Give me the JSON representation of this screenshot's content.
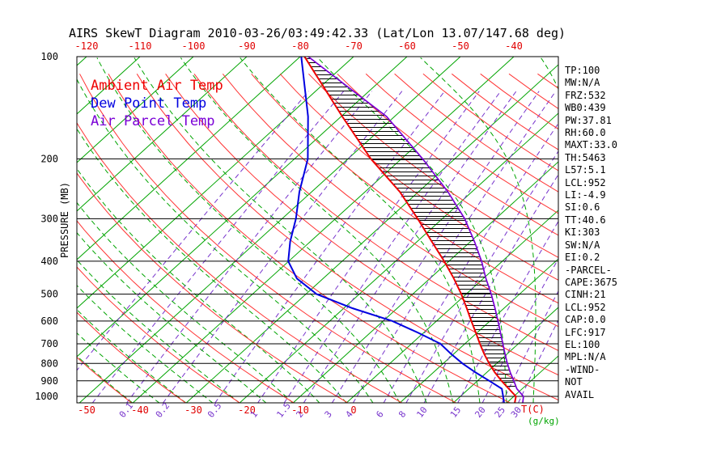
{
  "title": "AIRS SkewT Diagram 2010-03-26/03:49:42.33 (Lat/Lon 13.07/147.68 deg)",
  "legend": {
    "ambient": "Ambient Air Temp",
    "dew": "Dew Point Temp",
    "parcel": "Air Parcel Temp"
  },
  "stats": [
    "TP:100",
    "MW:N/A",
    "FRZ:532",
    "WB0:439",
    "PW:37.81",
    "RH:60.0",
    "MAXT:33.0",
    "TH:5463",
    "L57:5.1",
    "LCL:952",
    "LI:-4.9",
    "SI:0.6",
    "TT:40.6",
    "KI:303",
    "SW:N/A",
    "EI:0.2",
    "-PARCEL-",
    "CAPE:3675",
    "CINH:21",
    "LCL:952",
    "CAP:0.0",
    "LFC:917",
    "EL:100",
    "MPL:N/A",
    "-WIND-",
    "NOT",
    "AVAIL"
  ],
  "chart_data": {
    "type": "skewt_log_p",
    "title": "AIRS SkewT Diagram 2010-03-26/03:49:42.33 (Lat/Lon 13.07/147.68 deg)",
    "y_axis_label": "PRESSURE (MB)",
    "x_axis_label": "T(C)",
    "mixing_units_label": "(g/kg)",
    "pressure_ticks_mb": [
      100,
      200,
      300,
      400,
      500,
      600,
      700,
      800,
      900,
      1000
    ],
    "top_temp_ticks_c": [
      -120,
      -110,
      -100,
      -90,
      -80,
      -70,
      -60,
      -50,
      -40
    ],
    "bottom_temp_ticks_c": [
      -50,
      -40,
      -30,
      -20,
      -10,
      0
    ],
    "mixing_ratio_g_kg": [
      0.1,
      0.2,
      0.5,
      1,
      1.5,
      2,
      3,
      4,
      6,
      8,
      10,
      15,
      20,
      25,
      30
    ],
    "mixing_ratio_unlabeled_g_kg": [
      0.02,
      0.05
    ],
    "isotherms_c": {
      "min": -130,
      "max": 40,
      "step": 10
    },
    "dry_adiabats_k": {
      "min": 220,
      "max": 460,
      "step": 10
    },
    "moist_adiabats_c": {
      "min": -40,
      "max": 60,
      "step": 5
    },
    "cape_hatch_below_mb": 960,
    "colors": {
      "isotherm": "#00a400",
      "moist": "#00a400",
      "dry": "#ff3333",
      "mixing": "#7733cc",
      "ambient": "#ee0000",
      "dew": "#0000e0",
      "parcel": "#7a00d6",
      "tick_red": "#e00000",
      "tick_green": "#00a400",
      "frame": "#000000"
    },
    "sounding": {
      "pressure_mb": [
        1045,
        1000,
        950,
        900,
        850,
        800,
        750,
        700,
        650,
        600,
        550,
        500,
        450,
        400,
        350,
        300,
        250,
        200,
        150,
        100
      ],
      "ambient_temp_c": [
        31.5,
        30.4,
        27.5,
        24.5,
        21.5,
        18.6,
        15.7,
        12.8,
        9.8,
        6.5,
        3.0,
        -0.9,
        -5.5,
        -10.9,
        -17.3,
        -24.6,
        -33.5,
        -45.7,
        -59.8,
        -79.2
      ],
      "dew_point_c": [
        29.5,
        28.0,
        26.2,
        22.2,
        17.9,
        13.6,
        9.5,
        5.4,
        -1.0,
        -8.3,
        -18.4,
        -28.0,
        -34.9,
        -40.1,
        -43.8,
        -47.4,
        -52.3,
        -57.5,
        -66.2,
        -79.8
      ],
      "parcel_temp_c": [
        33.0,
        31.8,
        29.0,
        26.8,
        24.4,
        22.0,
        19.6,
        17.1,
        14.4,
        11.5,
        8.3,
        4.7,
        0.5,
        -3.9,
        -9.3,
        -15.8,
        -24.5,
        -36.0,
        -51.5,
        -78.5
      ]
    }
  }
}
